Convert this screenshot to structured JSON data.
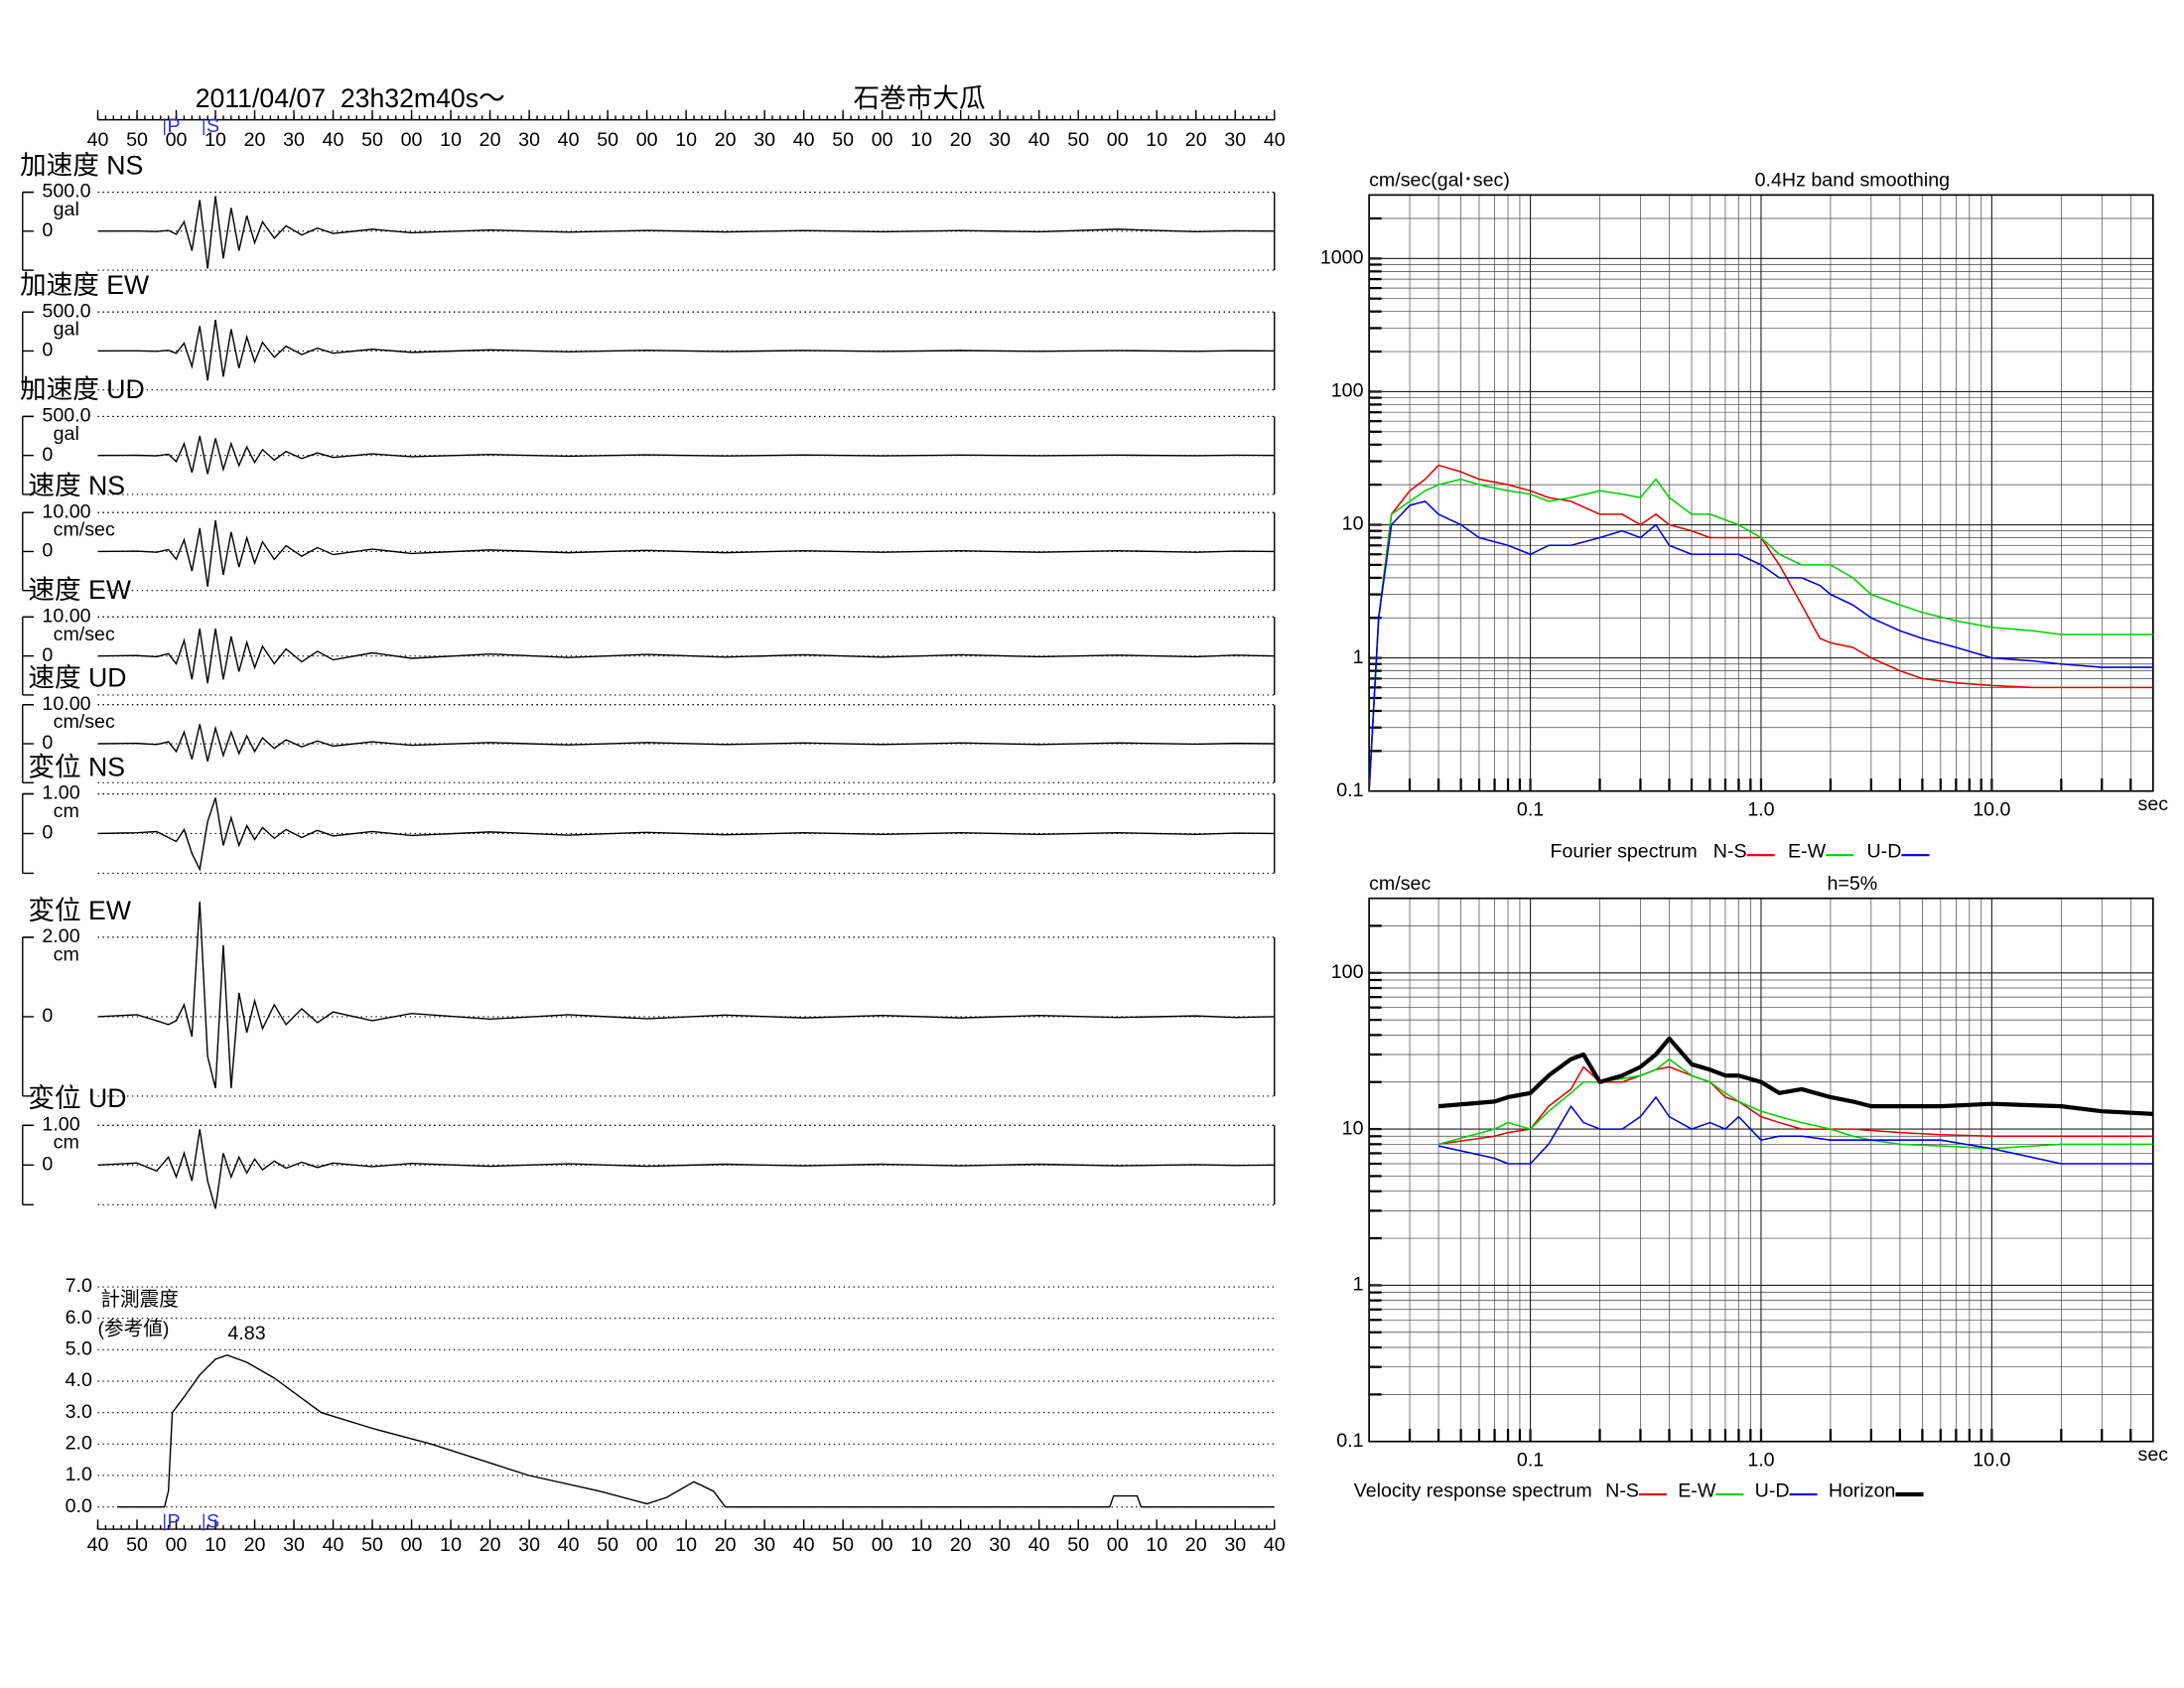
{
  "chart_data": [
    {
      "type": "waveform",
      "title": "2011/04/07  23h32m40s～",
      "subtitle": "石巻市大瓜",
      "xlim": [
        0,
        300
      ],
      "xticks": [
        {
          "value": 0,
          "label": "40"
        },
        {
          "value": 10,
          "label": "50"
        },
        {
          "value": 20,
          "label": "00"
        },
        {
          "value": 30,
          "label": "10"
        },
        {
          "value": 40,
          "label": "20"
        },
        {
          "value": 50,
          "label": "30"
        },
        {
          "value": 60,
          "label": "40"
        },
        {
          "value": 70,
          "label": "50"
        },
        {
          "value": 80,
          "label": "00"
        },
        {
          "value": 90,
          "label": "10"
        },
        {
          "value": 100,
          "label": "20"
        },
        {
          "value": 110,
          "label": "30"
        },
        {
          "value": 120,
          "label": "40"
        },
        {
          "value": 130,
          "label": "50"
        },
        {
          "value": 140,
          "label": "00"
        },
        {
          "value": 150,
          "label": "10"
        },
        {
          "value": 160,
          "label": "20"
        },
        {
          "value": 170,
          "label": "30"
        },
        {
          "value": 180,
          "label": "40"
        },
        {
          "value": 190,
          "label": "50"
        },
        {
          "value": 200,
          "label": "00"
        },
        {
          "value": 210,
          "label": "10"
        },
        {
          "value": 220,
          "label": "20"
        },
        {
          "value": 230,
          "label": "30"
        },
        {
          "value": 240,
          "label": "40"
        },
        {
          "value": 250,
          "label": "50"
        },
        {
          "value": 260,
          "label": "00"
        },
        {
          "value": 270,
          "label": "10"
        },
        {
          "value": 280,
          "label": "20"
        },
        {
          "value": 290,
          "label": "30"
        },
        {
          "value": 300,
          "label": "40"
        }
      ],
      "phases": [
        {
          "value": 17,
          "label": "P"
        },
        {
          "value": 27,
          "label": "S"
        }
      ],
      "phase_color": "#3030d0",
      "x": [
        0,
        10,
        15,
        18,
        20,
        22,
        24,
        26,
        28,
        30,
        32,
        34,
        36,
        38,
        40,
        42,
        45,
        48,
        52,
        56,
        60,
        70,
        80,
        100,
        120,
        140,
        160,
        180,
        200,
        220,
        240,
        260,
        280,
        290,
        300
      ],
      "panels": [
        {
          "name": "加速度 NS",
          "unit": "gal",
          "ylim": [
            -500,
            500
          ],
          "yticks": [
            {
              "value": 500,
              "label": "500.0"
            },
            0
          ],
          "values": [
            0,
            2,
            -5,
            10,
            -40,
            120,
            -250,
            400,
            -480,
            450,
            -350,
            300,
            -250,
            200,
            -150,
            120,
            -90,
            70,
            -50,
            40,
            -30,
            25,
            -20,
            15,
            -12,
            10,
            -10,
            8,
            -8,
            8,
            -8,
            25,
            -6,
            5,
            0
          ]
        },
        {
          "name": "加速度 EW",
          "unit": "gal",
          "ylim": [
            -500,
            500
          ],
          "yticks": [
            {
              "value": 500,
              "label": "500.0"
            },
            0
          ],
          "values": [
            0,
            2,
            -5,
            8,
            -30,
            100,
            -200,
            320,
            -380,
            400,
            -330,
            280,
            -220,
            180,
            -140,
            110,
            -80,
            60,
            -45,
            35,
            -28,
            22,
            -18,
            14,
            -11,
            9,
            -8,
            7,
            -6,
            6,
            -5,
            5,
            -5,
            4,
            0
          ]
        },
        {
          "name": "加速度 UD",
          "unit": "gal",
          "ylim": [
            -500,
            500
          ],
          "yticks": [
            {
              "value": 500,
              "label": "500.0"
            },
            0
          ],
          "values": [
            0,
            2,
            -5,
            15,
            -80,
            150,
            -220,
            250,
            -240,
            220,
            -180,
            150,
            -130,
            110,
            -90,
            75,
            -60,
            50,
            -40,
            32,
            -26,
            20,
            -16,
            12,
            -10,
            8,
            -7,
            6,
            -5,
            5,
            -4,
            4,
            -4,
            3,
            0
          ]
        },
        {
          "name": "速度 NS",
          "unit": "cm/sec",
          "ylim": [
            -10,
            10
          ],
          "yticks": [
            {
              "value": 10,
              "label": "10.00"
            },
            0
          ],
          "values": [
            0,
            0.1,
            -0.2,
            0.5,
            -2,
            3,
            -5,
            6,
            -9,
            8,
            -6,
            5,
            -4,
            3.5,
            -3,
            2.5,
            -2,
            1.5,
            -1.2,
            1,
            -0.8,
            0.6,
            -0.5,
            0.4,
            -0.3,
            0.3,
            -0.3,
            0.2,
            -0.2,
            0.2,
            -0.2,
            0.2,
            -0.2,
            0.1,
            0
          ]
        },
        {
          "name": "速度 EW",
          "unit": "cm/sec",
          "ylim": [
            -10,
            10
          ],
          "yticks": [
            {
              "value": 10,
              "label": "10.00"
            },
            0
          ],
          "values": [
            0,
            0.1,
            -0.2,
            0.6,
            -2,
            4,
            -6,
            7,
            -7,
            7,
            -6,
            5,
            -4,
            3.5,
            -3,
            2.5,
            -2,
            1.8,
            -1.5,
            1.2,
            -1,
            0.8,
            -0.6,
            0.5,
            -0.4,
            0.4,
            -0.3,
            0.3,
            -0.3,
            0.3,
            -0.2,
            0.2,
            -0.2,
            0.2,
            0
          ]
        },
        {
          "name": "速度 UD",
          "unit": "cm/sec",
          "ylim": [
            -10,
            10
          ],
          "yticks": [
            {
              "value": 10,
              "label": "10.00"
            },
            0
          ],
          "values": [
            0,
            0.1,
            -0.2,
            0.5,
            -2,
            3,
            -4,
            5,
            -4.5,
            4,
            -3,
            3,
            -2.5,
            2,
            -2,
            1.5,
            -1.2,
            1,
            -0.8,
            0.7,
            -0.6,
            0.5,
            -0.4,
            0.3,
            -0.3,
            0.3,
            -0.2,
            0.2,
            -0.2,
            0.2,
            -0.2,
            0.2,
            -0.1,
            0.1,
            0
          ]
        },
        {
          "name": "変位 NS",
          "unit": "cm",
          "ylim": [
            -1,
            1
          ],
          "yticks": [
            {
              "value": 1,
              "label": "1.00"
            },
            0
          ],
          "values": [
            0,
            0.02,
            0.05,
            -0.1,
            -0.2,
            0.1,
            -0.5,
            -0.9,
            0.3,
            0.9,
            -0.3,
            0.4,
            -0.3,
            0.2,
            -0.15,
            0.15,
            -0.12,
            0.1,
            -0.1,
            0.08,
            -0.06,
            0.05,
            -0.05,
            0.04,
            -0.04,
            0.03,
            -0.03,
            0.02,
            -0.02,
            0.02,
            -0.02,
            0.02,
            -0.02,
            0.01,
            0
          ]
        },
        {
          "name": "変位 EW",
          "unit": "cm",
          "ylim": [
            -2,
            2
          ],
          "yticks": [
            {
              "value": 2,
              "label": "2.00"
            },
            0
          ],
          "values": [
            0,
            0.05,
            -0.1,
            -0.2,
            -0.1,
            0.3,
            -0.5,
            2.9,
            -1.0,
            -1.8,
            1.8,
            -1.8,
            0.6,
            -0.4,
            0.4,
            -0.3,
            0.3,
            -0.2,
            0.2,
            -0.15,
            0.12,
            -0.1,
            0.08,
            -0.06,
            0.05,
            -0.05,
            0.04,
            -0.03,
            0.03,
            -0.03,
            0.03,
            -0.02,
            0.02,
            -0.02,
            0
          ]
        },
        {
          "name": "変位 UD",
          "unit": "cm",
          "ylim": [
            -1,
            1
          ],
          "yticks": [
            {
              "value": 1,
              "label": "1.00"
            },
            0
          ],
          "values": [
            0,
            0.05,
            -0.15,
            0.2,
            -0.3,
            0.3,
            -0.4,
            0.9,
            -0.4,
            -1.1,
            0.3,
            -0.3,
            0.2,
            -0.2,
            0.15,
            -0.12,
            0.1,
            -0.08,
            0.07,
            -0.06,
            0.05,
            -0.04,
            0.04,
            -0.03,
            0.03,
            -0.03,
            0.02,
            -0.02,
            0.02,
            -0.02,
            0.02,
            -0.02,
            0.01,
            -0.01,
            0
          ]
        }
      ]
    },
    {
      "type": "intensity",
      "labels": [
        "計測震度",
        "(参考値)"
      ],
      "peak": 4.83,
      "ylim": [
        0,
        7
      ],
      "yticks": [
        {
          "value": 0,
          "label": "0.0"
        },
        {
          "value": 1,
          "label": "1.0"
        },
        {
          "value": 2,
          "label": "2.0"
        },
        {
          "value": 3,
          "label": "3.0"
        },
        {
          "value": 4,
          "label": "4.0"
        },
        {
          "value": 5,
          "label": "5.0"
        },
        {
          "value": 6,
          "label": "6.0"
        },
        {
          "value": 7,
          "label": "7.0"
        }
      ],
      "x": [
        5,
        17,
        18,
        19,
        22,
        26,
        30,
        33,
        38,
        45,
        57,
        70,
        85,
        100,
        110,
        128,
        140,
        145,
        152,
        157,
        160,
        258,
        259,
        265,
        266,
        300
      ],
      "values": [
        0,
        0,
        0.5,
        3.0,
        3.5,
        4.2,
        4.7,
        4.83,
        4.6,
        4.1,
        3.0,
        2.5,
        2.0,
        1.4,
        1.0,
        0.5,
        0.1,
        0.3,
        0.8,
        0.5,
        0,
        0,
        0.35,
        0.35,
        0,
        0
      ]
    },
    {
      "type": "spectrum",
      "title": "Fourier spectrum",
      "y_unit": "cm/sec(gal･sec)",
      "subtitle": "0.4Hz band smoothing",
      "x_unit": "sec",
      "log_x": true,
      "log_y": true,
      "grid": true,
      "xlim": [
        0.02,
        50
      ],
      "ylim": [
        0.1,
        3000
      ],
      "xticks": [
        0.1,
        {
          "value": 1,
          "label": "1.0"
        },
        {
          "value": 10,
          "label": "10.0"
        }
      ],
      "yticks": [
        0.1,
        1,
        10,
        100,
        1000
      ],
      "x": [
        0.02,
        0.022,
        0.025,
        0.03,
        0.035,
        0.04,
        0.05,
        0.06,
        0.08,
        0.1,
        0.12,
        0.15,
        0.2,
        0.25,
        0.3,
        0.35,
        0.4,
        0.5,
        0.6,
        0.8,
        1,
        1.2,
        1.5,
        1.8,
        2,
        2.5,
        3,
        4,
        5,
        7,
        10,
        15,
        20,
        30,
        50
      ],
      "series": [
        {
          "name": "N-S",
          "color": "#e00000",
          "values": [
            0.1,
            2,
            12,
            18,
            22,
            28,
            25,
            22,
            20,
            18,
            16,
            15,
            12,
            12,
            10,
            12,
            10,
            9,
            8,
            8,
            8,
            5,
            2.5,
            1.4,
            1.3,
            1.2,
            1,
            0.8,
            0.7,
            0.65,
            0.62,
            0.6,
            0.6,
            0.6,
            0.6
          ]
        },
        {
          "name": "E-W",
          "color": "#00d000",
          "values": [
            0.1,
            2,
            12,
            15,
            18,
            20,
            22,
            20,
            18,
            17,
            15,
            16,
            18,
            17,
            16,
            22,
            16,
            12,
            12,
            10,
            8,
            6,
            5,
            5,
            5,
            4,
            3,
            2.5,
            2.2,
            1.9,
            1.7,
            1.6,
            1.5,
            1.5,
            1.5
          ]
        },
        {
          "name": "U-D",
          "color": "#0000e0",
          "values": [
            0.1,
            2,
            10,
            14,
            15,
            12,
            10,
            8,
            7,
            6,
            7,
            7,
            8,
            9,
            8,
            10,
            7,
            6,
            6,
            6,
            5,
            4,
            4,
            3.5,
            3,
            2.5,
            2,
            1.6,
            1.4,
            1.2,
            1,
            0.95,
            0.9,
            0.85,
            0.85
          ]
        }
      ]
    },
    {
      "type": "spectrum",
      "title": "Velocity response spectrum",
      "y_unit": "cm/sec",
      "subtitle": "h=5%",
      "x_unit": "sec",
      "log_x": true,
      "log_y": true,
      "grid": true,
      "xlim": [
        0.02,
        50
      ],
      "ylim": [
        0.1,
        300
      ],
      "xticks": [
        0.1,
        {
          "value": 1,
          "label": "1.0"
        },
        {
          "value": 10,
          "label": "10.0"
        }
      ],
      "yticks": [
        0.1,
        1,
        10,
        100
      ],
      "x": [
        0.04,
        0.07,
        0.08,
        0.1,
        0.12,
        0.15,
        0.17,
        0.2,
        0.25,
        0.3,
        0.35,
        0.4,
        0.5,
        0.6,
        0.7,
        0.8,
        1,
        1.2,
        1.5,
        2,
        2.5,
        3,
        4,
        6,
        10,
        20,
        30,
        50
      ],
      "series": [
        {
          "name": "N-S",
          "color": "#e00000",
          "values": [
            8,
            9,
            9.5,
            10,
            14,
            18,
            25,
            20,
            20,
            22,
            24,
            25,
            22,
            20,
            16,
            15,
            12,
            11,
            10,
            10,
            10,
            9.8,
            9.5,
            9.2,
            9,
            9,
            9,
            9
          ]
        },
        {
          "name": "E-W",
          "color": "#00d000",
          "values": [
            8,
            10,
            11,
            10,
            13,
            17,
            20,
            20,
            21,
            22,
            24,
            28,
            22,
            20,
            17,
            15,
            13,
            12,
            11,
            10,
            9,
            8.5,
            8,
            7.8,
            7.5,
            8,
            8,
            8
          ]
        },
        {
          "name": "U-D",
          "color": "#0000e0",
          "values": [
            7.8,
            6.5,
            6,
            6,
            8,
            14,
            11,
            10,
            10,
            12,
            16,
            12,
            10,
            11,
            10,
            12,
            8.5,
            9,
            9,
            8.5,
            8.5,
            8.5,
            8.5,
            8.5,
            7.5,
            6,
            6,
            6
          ]
        },
        {
          "name": "Horizon",
          "color": "#000000",
          "line_width": 3,
          "values": [
            14,
            15,
            16,
            17,
            22,
            28,
            30,
            20,
            22,
            25,
            30,
            38,
            26,
            24,
            22,
            22,
            20,
            17,
            18,
            16,
            15,
            14,
            14,
            14,
            14.5,
            14,
            13,
            12.5
          ]
        }
      ]
    }
  ]
}
